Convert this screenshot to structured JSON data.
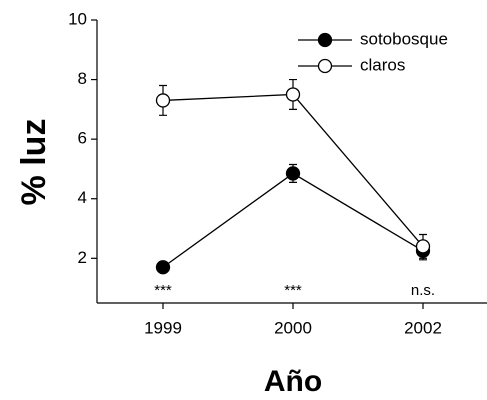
{
  "chart_data": {
    "type": "line",
    "x_label": "Año",
    "y_label": "% luz",
    "categories": [
      "1999",
      "2000",
      "2002"
    ],
    "series": [
      {
        "name": "sotobosque",
        "color": "#000000",
        "marker_fill": "#000000",
        "values": [
          1.7,
          4.85,
          2.25
        ],
        "errors": [
          0.1,
          0.3,
          0.3
        ]
      },
      {
        "name": "claros",
        "color": "#000000",
        "marker_fill": "#ffffff",
        "values": [
          7.3,
          7.5,
          2.4
        ],
        "errors": [
          0.5,
          0.5,
          0.4
        ]
      }
    ],
    "annotations": [
      "***",
      "***",
      "n.s."
    ],
    "ylim": [
      0.5,
      10
    ],
    "yticks": [
      2,
      4,
      6,
      8,
      10
    ],
    "grid": false,
    "legend": "upper right"
  }
}
